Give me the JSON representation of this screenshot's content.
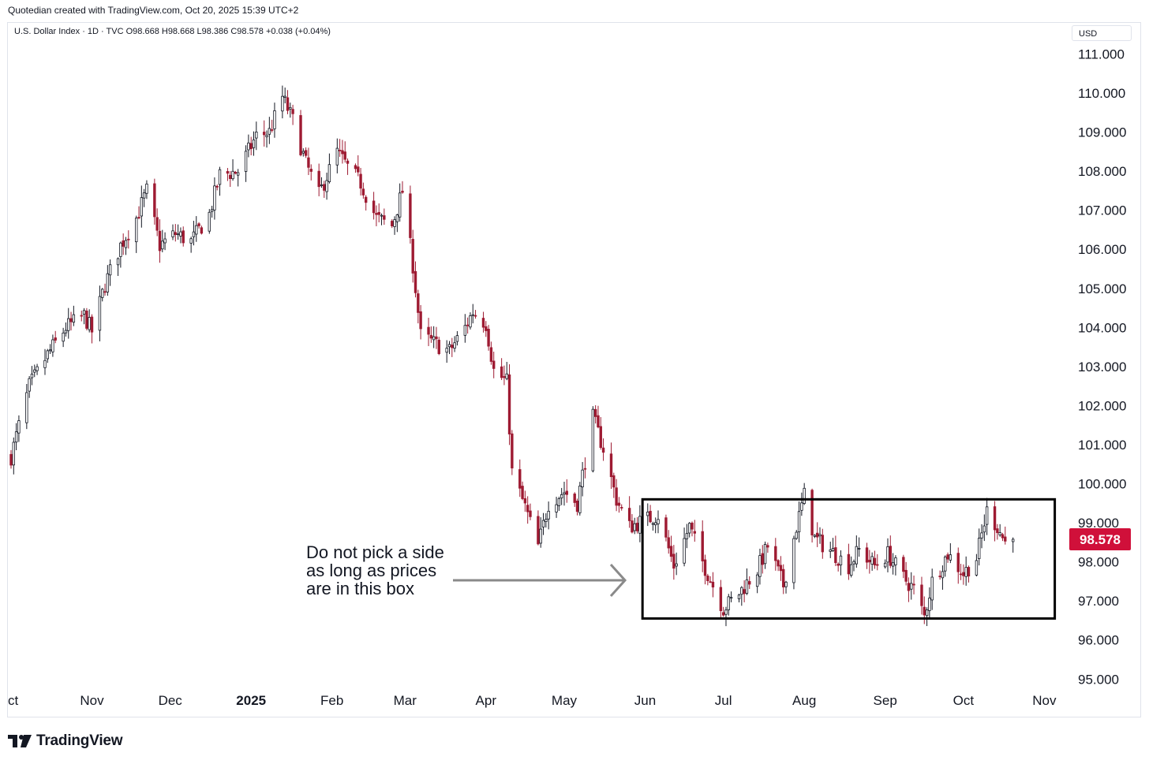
{
  "header": {
    "note": "Quotedian created with TradingView.com, Oct 20, 2025 15:39 UTC+2"
  },
  "symbol": {
    "line": "U.S. Dollar Index · 1D · TVC  O98.668  H98.668  L98.386  C98.578  +0.038 (+0.04%)"
  },
  "currency": "USD",
  "footer": {
    "logo_text": "TradingView",
    "logo_icon": "tradingview-logo-icon"
  },
  "colors": {
    "up": "#131722",
    "down": "#9e1b32",
    "box": "#000000",
    "arrow": "#8a8a8a",
    "last_price_bg": "#d0103a"
  },
  "chart_data": {
    "type": "candlestick",
    "title": "U.S. Dollar Index · 1D · TVC",
    "ylim": [
      94.5,
      111.6
    ],
    "y_ticks": [
      "111.000",
      "110.000",
      "109.000",
      "108.000",
      "107.000",
      "106.000",
      "105.000",
      "104.000",
      "103.000",
      "102.000",
      "101.000",
      "100.000",
      "99.000",
      "98.000",
      "97.000",
      "96.000",
      "95.000"
    ],
    "x_ticks": [
      {
        "label": "ct",
        "date": "2024-10-01"
      },
      {
        "label": "Nov",
        "date": "2024-11-01"
      },
      {
        "label": "Dec",
        "date": "2024-12-01"
      },
      {
        "label": "2025",
        "date": "2025-01-01",
        "bold": true
      },
      {
        "label": "Feb",
        "date": "2025-02-01"
      },
      {
        "label": "Mar",
        "date": "2025-03-01"
      },
      {
        "label": "Apr",
        "date": "2025-04-01"
      },
      {
        "label": "May",
        "date": "2025-05-01"
      },
      {
        "label": "Jun",
        "date": "2025-06-01"
      },
      {
        "label": "Jul",
        "date": "2025-07-01"
      },
      {
        "label": "Aug",
        "date": "2025-08-01"
      },
      {
        "label": "Sep",
        "date": "2025-09-01"
      },
      {
        "label": "Oct",
        "date": "2025-10-01"
      },
      {
        "label": "Nov",
        "date": "2025-11-01"
      }
    ],
    "last_price": "98.578",
    "closes": [
      {
        "date": "2024-10-01",
        "close": 100.7
      },
      {
        "date": "2024-10-08",
        "close": 102.5
      },
      {
        "date": "2024-10-15",
        "close": 103.3
      },
      {
        "date": "2024-10-22",
        "close": 104.0
      },
      {
        "date": "2024-10-29",
        "close": 104.3
      },
      {
        "date": "2024-11-01",
        "close": 103.9
      },
      {
        "date": "2024-11-06",
        "close": 105.1
      },
      {
        "date": "2024-11-12",
        "close": 106.1
      },
      {
        "date": "2024-11-18",
        "close": 106.8
      },
      {
        "date": "2024-11-22",
        "close": 107.5
      },
      {
        "date": "2024-11-27",
        "close": 106.1
      },
      {
        "date": "2024-12-03",
        "close": 106.4
      },
      {
        "date": "2024-12-09",
        "close": 106.2
      },
      {
        "date": "2024-12-16",
        "close": 106.9
      },
      {
        "date": "2024-12-20",
        "close": 107.9
      },
      {
        "date": "2024-12-27",
        "close": 108.0
      },
      {
        "date": "2025-01-03",
        "close": 108.9
      },
      {
        "date": "2025-01-08",
        "close": 109.0
      },
      {
        "date": "2025-01-13",
        "close": 109.9
      },
      {
        "date": "2025-01-17",
        "close": 109.3
      },
      {
        "date": "2025-01-22",
        "close": 108.2
      },
      {
        "date": "2025-01-27",
        "close": 107.4
      },
      {
        "date": "2025-02-03",
        "close": 108.5
      },
      {
        "date": "2025-02-07",
        "close": 108.1
      },
      {
        "date": "2025-02-12",
        "close": 107.7
      },
      {
        "date": "2025-02-18",
        "close": 106.8
      },
      {
        "date": "2025-02-24",
        "close": 106.6
      },
      {
        "date": "2025-02-28",
        "close": 107.5
      },
      {
        "date": "2025-03-04",
        "close": 105.6
      },
      {
        "date": "2025-03-07",
        "close": 103.8
      },
      {
        "date": "2025-03-12",
        "close": 103.6
      },
      {
        "date": "2025-03-18",
        "close": 103.4
      },
      {
        "date": "2025-03-24",
        "close": 104.0
      },
      {
        "date": "2025-03-27",
        "close": 104.4
      },
      {
        "date": "2025-04-01",
        "close": 104.1
      },
      {
        "date": "2025-04-04",
        "close": 102.9
      },
      {
        "date": "2025-04-09",
        "close": 102.6
      },
      {
        "date": "2025-04-11",
        "close": 100.3
      },
      {
        "date": "2025-04-16",
        "close": 99.4
      },
      {
        "date": "2025-04-21",
        "close": 98.4
      },
      {
        "date": "2025-04-25",
        "close": 99.5
      },
      {
        "date": "2025-05-01",
        "close": 99.8
      },
      {
        "date": "2025-05-06",
        "close": 99.5
      },
      {
        "date": "2025-05-12",
        "close": 101.7
      },
      {
        "date": "2025-05-16",
        "close": 100.9
      },
      {
        "date": "2025-05-21",
        "close": 99.6
      },
      {
        "date": "2025-05-26",
        "close": 98.9
      },
      {
        "date": "2025-06-02",
        "close": 99.1
      },
      {
        "date": "2025-06-06",
        "close": 99.2
      },
      {
        "date": "2025-06-12",
        "close": 97.9
      },
      {
        "date": "2025-06-18",
        "close": 98.9
      },
      {
        "date": "2025-06-23",
        "close": 98.0
      },
      {
        "date": "2025-06-27",
        "close": 97.4
      },
      {
        "date": "2025-07-01",
        "close": 96.8
      },
      {
        "date": "2025-07-07",
        "close": 97.2
      },
      {
        "date": "2025-07-14",
        "close": 97.8
      },
      {
        "date": "2025-07-18",
        "close": 98.4
      },
      {
        "date": "2025-07-24",
        "close": 97.4
      },
      {
        "date": "2025-07-29",
        "close": 98.9
      },
      {
        "date": "2025-08-01",
        "close": 99.7
      },
      {
        "date": "2025-08-05",
        "close": 98.6
      },
      {
        "date": "2025-08-11",
        "close": 98.3
      },
      {
        "date": "2025-08-18",
        "close": 97.9
      },
      {
        "date": "2025-08-22",
        "close": 98.3
      },
      {
        "date": "2025-08-28",
        "close": 97.9
      },
      {
        "date": "2025-09-02",
        "close": 98.2
      },
      {
        "date": "2025-09-08",
        "close": 97.6
      },
      {
        "date": "2025-09-12",
        "close": 97.3
      },
      {
        "date": "2025-09-16",
        "close": 96.6
      },
      {
        "date": "2025-09-19",
        "close": 97.5
      },
      {
        "date": "2025-09-25",
        "close": 98.2
      },
      {
        "date": "2025-10-01",
        "close": 97.7
      },
      {
        "date": "2025-10-06",
        "close": 98.1
      },
      {
        "date": "2025-10-10",
        "close": 99.3
      },
      {
        "date": "2025-10-14",
        "close": 98.9
      },
      {
        "date": "2025-10-17",
        "close": 98.5
      },
      {
        "date": "2025-10-20",
        "close": 98.578
      }
    ],
    "range_box": {
      "start": "2025-05-31",
      "end": "2025-11-05",
      "top": 99.6,
      "bottom": 96.55
    },
    "annotation": {
      "lines": [
        "Do not pick a side",
        "as long as prices",
        "are in this box"
      ]
    }
  }
}
